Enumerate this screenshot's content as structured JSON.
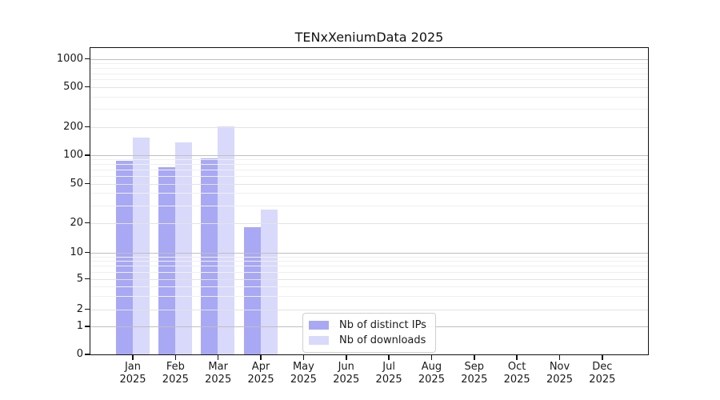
{
  "chart_data": {
    "type": "bar",
    "title": "TENxXeniumData 2025",
    "year": "2025",
    "months": [
      "Jan",
      "Feb",
      "Mar",
      "Apr",
      "May",
      "Jun",
      "Jul",
      "Aug",
      "Sep",
      "Oct",
      "Nov",
      "Dec"
    ],
    "series": [
      {
        "name": "Nb of distinct IPs",
        "color": "#a8a8f5",
        "values": [
          88,
          74,
          92,
          18,
          0,
          0,
          0,
          0,
          0,
          0,
          0,
          0
        ]
      },
      {
        "name": "Nb of downloads",
        "color": "#d9d9fb",
        "values": [
          155,
          137,
          203,
          27,
          0,
          0,
          0,
          0,
          0,
          0,
          0,
          0
        ]
      }
    ],
    "y_axis": {
      "scale": "symlog",
      "tick_values": [
        0,
        1,
        2,
        5,
        10,
        20,
        50,
        100,
        200,
        500,
        1000
      ]
    },
    "legend": {
      "position": "lower center",
      "entries": [
        "Nb of distinct IPs",
        "Nb of downloads"
      ]
    },
    "grid": {
      "major_color": "#bfbfbf",
      "ticked_minor_color": "#e3e3e3",
      "minor_color": "#f0f0f0"
    }
  }
}
